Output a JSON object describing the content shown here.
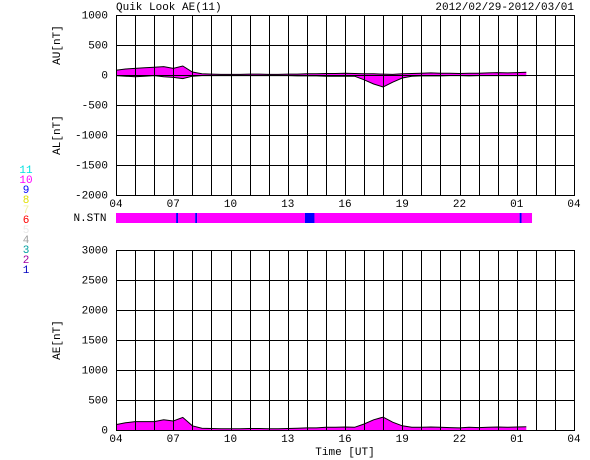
{
  "header": {
    "title": "Quik Look AE(11)",
    "date_range": "2012/02/29-2012/03/01"
  },
  "stations": [
    {
      "label": "11",
      "color": "#00e0e0"
    },
    {
      "label": "10",
      "color": "#ff00ff"
    },
    {
      "label": "9",
      "color": "#0000ff"
    },
    {
      "label": "8",
      "color": "#e0e000"
    },
    {
      "label": "7",
      "color": "#f0f0a0"
    },
    {
      "label": "6",
      "color": "#ff0000"
    },
    {
      "label": "5",
      "color": "#e8e8e8"
    },
    {
      "label": "4",
      "color": "#a0a0a0"
    },
    {
      "label": "3",
      "color": "#00a0a0"
    },
    {
      "label": "2",
      "color": "#a000a0"
    },
    {
      "label": "1",
      "color": "#0000c0"
    }
  ],
  "nstn": {
    "label": "N.STN",
    "x": [
      4,
      7.15,
      7.25,
      8.15,
      8.25,
      13.9,
      14.4,
      25.15,
      25.25
    ],
    "end": 25.8,
    "values": [
      10,
      9,
      10,
      9,
      10,
      9,
      10,
      9,
      10
    ]
  },
  "chart_data": [
    {
      "type": "area",
      "ylabels": [
        "AU[nT]",
        "AL[nT]"
      ],
      "x": [
        4,
        4.5,
        5,
        5.5,
        6,
        6.5,
        7,
        7.5,
        8,
        8.5,
        9,
        9.5,
        10,
        10.5,
        11,
        11.5,
        12,
        12.5,
        13,
        13.5,
        14,
        14.5,
        15,
        15.5,
        16,
        16.5,
        17,
        17.5,
        18,
        18.5,
        19,
        19.5,
        20,
        20.5,
        21,
        21.5,
        22,
        22.5,
        23,
        23.5,
        24,
        24.5,
        25,
        25.5
      ],
      "series": [
        {
          "name": "AU",
          "color": "#ff00ff",
          "values": [
            80,
            100,
            110,
            120,
            130,
            140,
            110,
            150,
            50,
            20,
            15,
            10,
            10,
            10,
            15,
            15,
            10,
            10,
            15,
            15,
            20,
            20,
            25,
            25,
            30,
            25,
            20,
            20,
            15,
            10,
            20,
            25,
            30,
            35,
            30,
            30,
            25,
            30,
            30,
            35,
            40,
            35,
            40,
            45
          ]
        },
        {
          "name": "AL",
          "color": "#ff00ff",
          "values": [
            -10,
            -20,
            -30,
            -20,
            -10,
            -30,
            -40,
            -60,
            -20,
            -10,
            -10,
            -10,
            -10,
            -10,
            -10,
            -10,
            -10,
            -10,
            -10,
            -15,
            -15,
            -15,
            -20,
            -20,
            -20,
            -20,
            -80,
            -150,
            -200,
            -120,
            -50,
            -20,
            -15,
            -15,
            -15,
            -10,
            -10,
            -15,
            -10,
            -10,
            -10,
            -10,
            -10,
            -10
          ]
        }
      ],
      "xlim": [
        4,
        28
      ],
      "xticks": [
        {
          "value": 4,
          "label": "04"
        },
        {
          "value": 7,
          "label": "07"
        },
        10,
        13,
        16,
        19,
        22,
        {
          "value": 25,
          "label": "01"
        },
        {
          "value": 28,
          "label": "04"
        }
      ],
      "xgrid": [
        4,
        5,
        6,
        7,
        8,
        9,
        10,
        11,
        12,
        13,
        14,
        15,
        16,
        17,
        18,
        19,
        20,
        21,
        22,
        23,
        24,
        25,
        26,
        27,
        28
      ],
      "ylim": [
        -2000,
        1000
      ],
      "yticks": [
        1000,
        500,
        0,
        -500,
        -1000,
        -1500,
        -2000
      ],
      "grid": true
    },
    {
      "type": "area",
      "ylabel": "AE[nT]",
      "xlabel": "Time [UT]",
      "x": [
        4,
        4.5,
        5,
        5.5,
        6,
        6.5,
        7,
        7.5,
        8,
        8.5,
        9,
        9.5,
        10,
        10.5,
        11,
        11.5,
        12,
        12.5,
        13,
        13.5,
        14,
        14.5,
        15,
        15.5,
        16,
        16.5,
        17,
        17.5,
        18,
        18.5,
        19,
        19.5,
        20,
        20.5,
        21,
        21.5,
        22,
        22.5,
        23,
        23.5,
        24,
        24.5,
        25,
        25.5
      ],
      "series": [
        {
          "name": "AE",
          "color": "#ff00ff",
          "values": [
            90,
            120,
            140,
            140,
            140,
            170,
            150,
            210,
            70,
            30,
            25,
            20,
            20,
            20,
            25,
            25,
            20,
            20,
            25,
            30,
            35,
            35,
            45,
            45,
            50,
            45,
            100,
            170,
            215,
            130,
            70,
            45,
            45,
            50,
            45,
            40,
            35,
            45,
            40,
            45,
            50,
            45,
            50,
            55
          ]
        }
      ],
      "xlim": [
        4,
        28
      ],
      "xticks": [
        {
          "value": 4,
          "label": "04"
        },
        {
          "value": 7,
          "label": "07"
        },
        10,
        13,
        16,
        19,
        22,
        {
          "value": 25,
          "label": "01"
        },
        {
          "value": 28,
          "label": "04"
        }
      ],
      "xgrid": [
        4,
        5,
        6,
        7,
        8,
        9,
        10,
        11,
        12,
        13,
        14,
        15,
        16,
        17,
        18,
        19,
        20,
        21,
        22,
        23,
        24,
        25,
        26,
        27,
        28
      ],
      "ylim": [
        0,
        3000
      ],
      "yticks": [
        3000,
        2500,
        2000,
        1500,
        1000,
        500,
        0
      ],
      "grid": true
    }
  ]
}
